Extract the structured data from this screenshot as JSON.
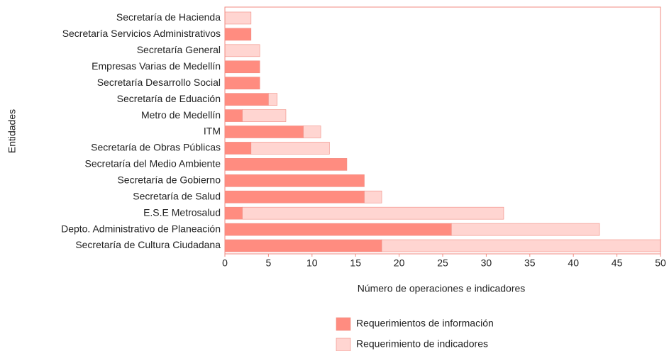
{
  "chart_data": {
    "type": "bar",
    "orientation": "horizontal",
    "stacked": true,
    "xlabel": "Número de operaciones e indicadores",
    "ylabel": "Entidades",
    "categories": [
      "Secretaría de Hacienda",
      "Secretaría Servicios Administrativos",
      "Secretaría General",
      "Empresas Varias de Medellín",
      "Secretaría Desarrollo Social",
      "Secretaría de Eduación",
      "Metro de Medellín",
      "ITM",
      "Secretaría de Obras Públicas",
      "Secretaría del  Medio Ambiente",
      "Secretaría de Gobierno",
      "Secretaría de Salud",
      "E.S.E Metrosalud",
      "Depto. Administrativo de Planeación",
      "Secretaría de Cultura Ciudadana"
    ],
    "series": [
      {
        "name": "Requerimientos de información",
        "color": "#ff8c80",
        "values": [
          0,
          3,
          0,
          4,
          4,
          5,
          2,
          9,
          3,
          14,
          16,
          16,
          2,
          26,
          18
        ]
      },
      {
        "name": "Requerimiento de indicadores",
        "color": "#ffd5d1",
        "values": [
          3,
          0,
          4,
          0,
          0,
          1,
          5,
          2,
          9,
          0,
          0,
          2,
          30,
          17,
          32
        ]
      }
    ],
    "xlim": [
      0,
      50
    ],
    "xticks": [
      0,
      5,
      10,
      15,
      20,
      25,
      30,
      35,
      40,
      45,
      50
    ],
    "legend": "bottom"
  }
}
